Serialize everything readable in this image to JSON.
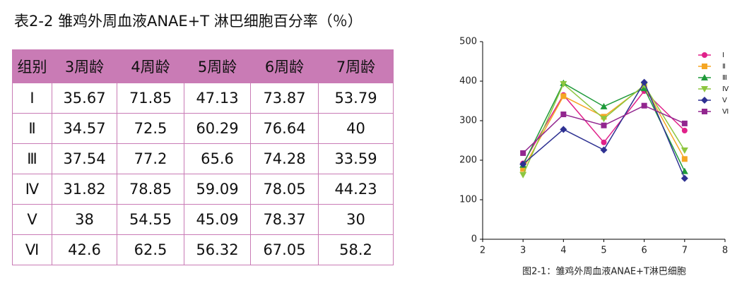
{
  "title": "表2-2  雏鸡外周血液ANAE+T 淋巴细胞百分率（％）",
  "table": {
    "header": [
      "组别",
      "3周龄",
      "4周龄",
      "5周龄",
      "6周龄",
      "7周龄"
    ],
    "rows": [
      [
        "Ⅰ",
        "35.67",
        "71.85",
        "47.13",
        "73.87",
        "53.79"
      ],
      [
        "Ⅱ",
        "34.57",
        "72.5",
        "60.29",
        "76.64",
        "40"
      ],
      [
        "Ⅲ",
        "37.54",
        "77.2",
        "65.6",
        "74.28",
        "33.59"
      ],
      [
        "Ⅳ",
        "31.82",
        "78.85",
        "59.09",
        "78.05",
        "44.23"
      ],
      [
        "Ⅴ",
        "38",
        "54.55",
        "45.09",
        "78.37",
        "30"
      ],
      [
        "Ⅵ",
        "42.6",
        "62.5",
        "56.32",
        "67.05",
        "58.2"
      ]
    ]
  },
  "chart_data": {
    "type": "line",
    "caption": "图2-1：雏鸡外周血液ANAE+T淋巴细胞",
    "x": [
      3,
      4,
      5,
      6,
      7
    ],
    "xlim": [
      2,
      8
    ],
    "xticks": [
      2,
      3,
      4,
      5,
      6,
      7,
      8
    ],
    "ylim": [
      0,
      500
    ],
    "yticks": [
      0,
      100,
      200,
      300,
      400,
      500
    ],
    "grid": false,
    "legend": "top-right",
    "series": [
      {
        "name": "Ⅰ",
        "color": "#e0218a",
        "marker": "circle",
        "values": [
          192,
          365,
          245,
          375,
          275
        ]
      },
      {
        "name": "Ⅱ",
        "color": "#f5a623",
        "marker": "square",
        "values": [
          178,
          362,
          310,
          388,
          203
        ]
      },
      {
        "name": "Ⅲ",
        "color": "#1f9a3a",
        "marker": "triangle",
        "values": [
          188,
          395,
          336,
          382,
          172
        ]
      },
      {
        "name": "Ⅳ",
        "color": "#8dc63f",
        "marker": "triangle-down",
        "values": [
          163,
          393,
          305,
          390,
          225
        ]
      },
      {
        "name": "Ⅴ",
        "color": "#2e3192",
        "marker": "diamond",
        "values": [
          190,
          278,
          226,
          397,
          154
        ]
      },
      {
        "name": "Ⅵ",
        "color": "#92278f",
        "marker": "square",
        "values": [
          218,
          316,
          288,
          338,
          293
        ]
      }
    ]
  }
}
